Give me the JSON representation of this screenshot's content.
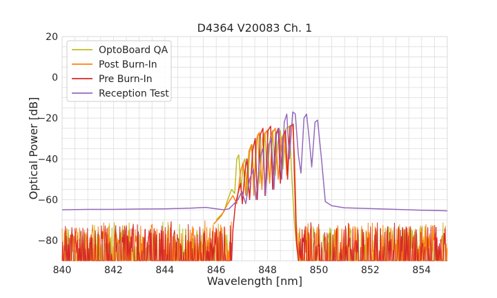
{
  "chart_data": {
    "type": "line",
    "title": "D4364 V20083 Ch. 1",
    "xlabel": "Wavelength [nm]",
    "ylabel": "Optical Power [dB]",
    "xlim": [
      840,
      855
    ],
    "ylim": [
      -90,
      20
    ],
    "xticks": [
      840,
      842,
      844,
      846,
      848,
      850,
      852,
      854
    ],
    "yticks": [
      20,
      0,
      -20,
      -40,
      -60,
      -80
    ],
    "ytick_labels": [
      "20",
      "0",
      "−20",
      "−40",
      "−60",
      "−80"
    ],
    "grid": true,
    "legend_position": "top-left",
    "series": [
      {
        "name": "OptoBoard QA",
        "color": "#bcbd22",
        "points": [
          [
            846.0,
            -70
          ],
          [
            846.3,
            -66
          ],
          [
            846.45,
            -60
          ],
          [
            846.6,
            -55
          ],
          [
            846.72,
            -57
          ],
          [
            846.8,
            -40
          ],
          [
            846.88,
            -38
          ],
          [
            846.97,
            -55
          ],
          [
            847.05,
            -42
          ],
          [
            847.12,
            -40
          ],
          [
            847.2,
            -58
          ],
          [
            847.3,
            -37
          ],
          [
            847.4,
            -33
          ],
          [
            847.47,
            -55
          ],
          [
            847.55,
            -32
          ],
          [
            847.62,
            -28
          ],
          [
            847.7,
            -52
          ],
          [
            847.8,
            -30
          ],
          [
            847.9,
            -27
          ],
          [
            847.98,
            -50
          ],
          [
            848.1,
            -30
          ],
          [
            848.2,
            -26
          ],
          [
            848.3,
            -48
          ],
          [
            848.4,
            -32
          ],
          [
            848.5,
            -26
          ],
          [
            848.6,
            -45
          ],
          [
            848.72,
            -25
          ],
          [
            848.85,
            -24
          ],
          [
            848.95,
            -50
          ],
          [
            849.05,
            -72
          ],
          [
            849.15,
            -85
          ],
          [
            849.25,
            -90
          ]
        ]
      },
      {
        "name": "Post Burn-In",
        "color": "#ff7f0e",
        "points": [
          [
            845.9,
            -72
          ],
          [
            846.2,
            -68
          ],
          [
            846.45,
            -62
          ],
          [
            846.65,
            -58
          ],
          [
            846.8,
            -62
          ],
          [
            846.95,
            -46
          ],
          [
            847.05,
            -42
          ],
          [
            847.15,
            -58
          ],
          [
            847.28,
            -36
          ],
          [
            847.38,
            -33
          ],
          [
            847.47,
            -58
          ],
          [
            847.58,
            -30
          ],
          [
            847.68,
            -27
          ],
          [
            847.78,
            -55
          ],
          [
            847.88,
            -28
          ],
          [
            847.98,
            -26
          ],
          [
            848.08,
            -52
          ],
          [
            848.2,
            -27
          ],
          [
            848.3,
            -25
          ],
          [
            848.42,
            -50
          ],
          [
            848.55,
            -30
          ],
          [
            848.65,
            -27
          ],
          [
            848.75,
            -48
          ],
          [
            848.88,
            -24
          ],
          [
            848.98,
            -23
          ],
          [
            849.05,
            -40
          ],
          [
            849.12,
            -72
          ],
          [
            849.2,
            -88
          ],
          [
            849.3,
            -90
          ]
        ]
      },
      {
        "name": "Pre Burn-In",
        "color": "#d62728",
        "points": [
          [
            846.6,
            -90
          ],
          [
            846.65,
            -75
          ],
          [
            846.75,
            -62
          ],
          [
            846.85,
            -57
          ],
          [
            846.95,
            -52
          ],
          [
            847.02,
            -62
          ],
          [
            847.12,
            -46
          ],
          [
            847.2,
            -40
          ],
          [
            847.3,
            -60
          ],
          [
            847.42,
            -36
          ],
          [
            847.52,
            -30
          ],
          [
            847.6,
            -60
          ],
          [
            847.72,
            -28
          ],
          [
            847.82,
            -25
          ],
          [
            847.9,
            -58
          ],
          [
            848.02,
            -26
          ],
          [
            848.12,
            -24
          ],
          [
            848.2,
            -55
          ],
          [
            848.32,
            -28
          ],
          [
            848.42,
            -25
          ],
          [
            848.5,
            -52
          ],
          [
            848.6,
            -30
          ],
          [
            848.7,
            -26
          ],
          [
            848.78,
            -50
          ],
          [
            848.88,
            -24
          ],
          [
            849.0,
            -23
          ],
          [
            849.05,
            -50
          ],
          [
            849.12,
            -80
          ],
          [
            849.2,
            -90
          ]
        ]
      },
      {
        "name": "Reception Test",
        "color": "#9467bd",
        "points": [
          [
            840.0,
            -65
          ],
          [
            841.0,
            -64.8
          ],
          [
            842.0,
            -64.8
          ],
          [
            843.0,
            -64.6
          ],
          [
            844.0,
            -64.5
          ],
          [
            845.0,
            -64.2
          ],
          [
            845.6,
            -63.8
          ],
          [
            846.0,
            -64.5
          ],
          [
            846.3,
            -65
          ],
          [
            846.5,
            -64.5
          ],
          [
            846.7,
            -62
          ],
          [
            846.85,
            -60
          ],
          [
            847.0,
            -56
          ],
          [
            847.15,
            -62
          ],
          [
            847.3,
            -50
          ],
          [
            847.45,
            -45
          ],
          [
            847.55,
            -60
          ],
          [
            847.7,
            -40
          ],
          [
            847.82,
            -35
          ],
          [
            847.92,
            -58
          ],
          [
            848.05,
            -33
          ],
          [
            848.15,
            -30
          ],
          [
            848.25,
            -55
          ],
          [
            848.35,
            -28
          ],
          [
            848.45,
            -25
          ],
          [
            848.55,
            -50
          ],
          [
            848.65,
            -22
          ],
          [
            848.75,
            -18
          ],
          [
            848.85,
            -40
          ],
          [
            848.98,
            -17
          ],
          [
            849.08,
            -18
          ],
          [
            849.2,
            -38
          ],
          [
            849.3,
            -47
          ],
          [
            849.42,
            -20
          ],
          [
            849.52,
            -18
          ],
          [
            849.62,
            -30
          ],
          [
            849.72,
            -44
          ],
          [
            849.85,
            -22
          ],
          [
            849.95,
            -21
          ],
          [
            850.1,
            -40
          ],
          [
            850.25,
            -61
          ],
          [
            850.5,
            -63
          ],
          [
            851.0,
            -64
          ],
          [
            852.0,
            -64.4
          ],
          [
            853.0,
            -64.8
          ],
          [
            854.0,
            -65.2
          ],
          [
            855.0,
            -65.5
          ]
        ]
      }
    ],
    "noise_floor": {
      "description": "dense noisy floor below about -70 dB for OptoBoard QA, Post Burn-In and Pre Burn-In outside the peak region",
      "regions": [
        [
          840,
          846.6
        ],
        [
          849.2,
          855
        ]
      ],
      "ymax": -72,
      "ymin": -90
    }
  }
}
